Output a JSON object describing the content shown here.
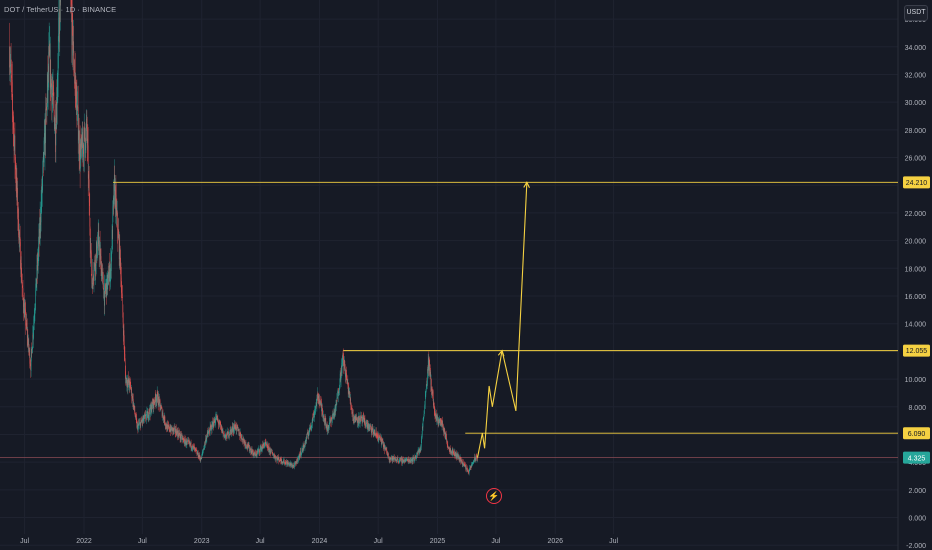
{
  "header": {
    "symbol": "DOT / TetherUS · 1D · BINANCE",
    "currency_button": "USDT"
  },
  "colors": {
    "background": "#161a25",
    "grid": "#1f2330",
    "up": "#26a69a",
    "down": "#ef5350",
    "drawing": "#f5d142",
    "current_price": "#26a69a"
  },
  "chart_data": {
    "type": "candlestick",
    "title": "DOT / TetherUS · 1D · BINANCE",
    "ylim": [
      -2.2,
      36.8
    ],
    "y_ticks": [
      36,
      34,
      32,
      30,
      28,
      26,
      24,
      22,
      20,
      18,
      16,
      14,
      12,
      10,
      8,
      6,
      4,
      2,
      0,
      -2
    ],
    "y_tick_labels": [
      "36.000",
      "34.000",
      "32.000",
      "30.000",
      "28.000",
      "26.000",
      "24.000",
      "22.000",
      "20.000",
      "18.000",
      "16.000",
      "14.000",
      "12.000",
      "10.000",
      "8.000",
      "6.000",
      "4.000",
      "2.000",
      "0.000",
      "-2.000"
    ],
    "x_labels": [
      "Jul",
      "2022",
      "Jul",
      "2023",
      "Jul",
      "2024",
      "Jul",
      "2025",
      "Jul",
      "2026",
      "Jul"
    ],
    "x_label_dates": [
      "2021-07-01",
      "2022-01-01",
      "2022-07-01",
      "2023-01-01",
      "2023-07-01",
      "2024-01-01",
      "2024-07-01",
      "2025-01-01",
      "2025-07-01",
      "2026-01-01",
      "2026-07-01"
    ],
    "x_range": [
      "2021-04-15",
      "2026-10-01"
    ],
    "price_path": [
      [
        "2021-05-15",
        34.0
      ],
      [
        "2021-06-10",
        22.0
      ],
      [
        "2021-06-25",
        16.0
      ],
      [
        "2021-07-20",
        11.0
      ],
      [
        "2021-08-15",
        20.0
      ],
      [
        "2021-09-15",
        33.0
      ],
      [
        "2021-10-05",
        28.0
      ],
      [
        "2021-11-04",
        48.0
      ],
      [
        "2021-11-25",
        35.0
      ],
      [
        "2021-12-20",
        26.0
      ],
      [
        "2022-01-10",
        28.0
      ],
      [
        "2022-01-25",
        17.0
      ],
      [
        "2022-02-15",
        20.0
      ],
      [
        "2022-03-05",
        16.0
      ],
      [
        "2022-03-25",
        18.0
      ],
      [
        "2022-04-05",
        24.0
      ],
      [
        "2022-04-25",
        18.0
      ],
      [
        "2022-05-10",
        10.0
      ],
      [
        "2022-05-25",
        9.5
      ],
      [
        "2022-06-15",
        6.5
      ],
      [
        "2022-07-20",
        7.5
      ],
      [
        "2022-08-15",
        8.8
      ],
      [
        "2022-09-15",
        6.5
      ],
      [
        "2022-10-15",
        6.2
      ],
      [
        "2022-11-08",
        5.5
      ],
      [
        "2022-12-01",
        5.2
      ],
      [
        "2022-12-30",
        4.2
      ],
      [
        "2023-01-15",
        5.8
      ],
      [
        "2023-02-15",
        7.2
      ],
      [
        "2023-03-15",
        5.8
      ],
      [
        "2023-04-15",
        6.6
      ],
      [
        "2023-05-15",
        5.4
      ],
      [
        "2023-06-15",
        4.5
      ],
      [
        "2023-07-15",
        5.3
      ],
      [
        "2023-08-20",
        4.3
      ],
      [
        "2023-09-15",
        4.0
      ],
      [
        "2023-10-15",
        3.7
      ],
      [
        "2023-11-15",
        5.2
      ],
      [
        "2023-12-10",
        7.0
      ],
      [
        "2023-12-28",
        8.8
      ],
      [
        "2024-01-25",
        6.4
      ],
      [
        "2024-02-20",
        7.8
      ],
      [
        "2024-03-14",
        11.5
      ],
      [
        "2024-04-15",
        7.2
      ],
      [
        "2024-05-15",
        7.0
      ],
      [
        "2024-06-15",
        6.2
      ],
      [
        "2024-07-10",
        5.6
      ],
      [
        "2024-08-05",
        4.3
      ],
      [
        "2024-09-10",
        4.1
      ],
      [
        "2024-10-20",
        4.2
      ],
      [
        "2024-11-10",
        5.0
      ],
      [
        "2024-12-04",
        11.3
      ],
      [
        "2024-12-25",
        7.2
      ],
      [
        "2025-01-15",
        6.8
      ],
      [
        "2025-02-05",
        5.0
      ],
      [
        "2025-03-10",
        4.3
      ],
      [
        "2025-04-08",
        3.3
      ],
      [
        "2025-04-25",
        4.2
      ],
      [
        "2025-05-05",
        4.33
      ]
    ],
    "current_price": {
      "value": 4.325,
      "label": "4.325"
    },
    "horizontal_lines": [
      {
        "value": 24.21,
        "label": "24.210",
        "from": "2022-04-01"
      },
      {
        "value": 12.055,
        "label": "12.055",
        "from": "2024-03-15"
      },
      {
        "value": 6.09,
        "label": "6.090",
        "from": "2025-03-28"
      }
    ],
    "projection_path": [
      [
        "2025-05-05",
        4.33
      ],
      [
        "2025-05-20",
        6.09
      ],
      [
        "2025-05-27",
        5.0
      ],
      [
        "2025-06-10",
        9.5
      ],
      [
        "2025-06-20",
        8.0
      ],
      [
        "2025-07-20",
        12.055
      ],
      [
        "2025-09-01",
        7.7
      ],
      [
        "2025-10-05",
        24.21
      ]
    ]
  }
}
